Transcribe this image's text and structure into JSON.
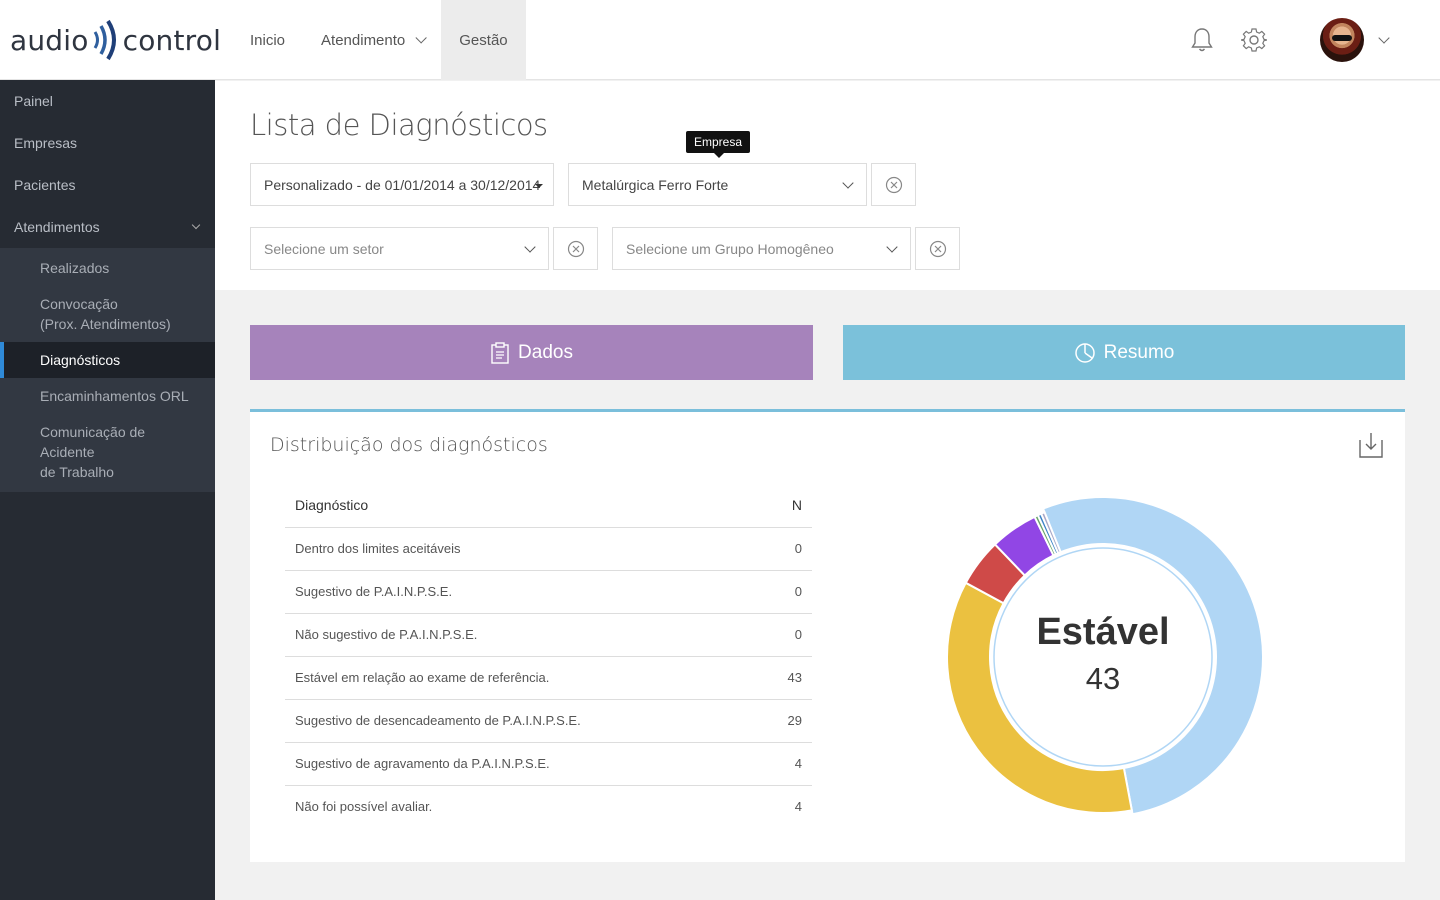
{
  "brand": {
    "left": "audio",
    "right": "control"
  },
  "nav": [
    {
      "label": "Inicio",
      "dropdown": false,
      "active": false
    },
    {
      "label": "Atendimento",
      "dropdown": true,
      "active": false
    },
    {
      "label": "Gestão",
      "dropdown": false,
      "active": true
    }
  ],
  "topbar_icons": [
    "bell-icon",
    "gear-icon",
    "avatar"
  ],
  "sidebar": {
    "items": [
      {
        "label": "Painel"
      },
      {
        "label": "Empresas"
      },
      {
        "label": "Pacientes"
      },
      {
        "label": "Atendimentos",
        "expanded": true
      }
    ],
    "submenu": [
      {
        "label": "Realizados"
      },
      {
        "label": "Convocação",
        "label2": "(Prox. Atendimentos)"
      },
      {
        "label": "Diagnósticos",
        "active": true
      },
      {
        "label": "Encaminhamentos ORL"
      },
      {
        "label": "Comunicação de Acidente",
        "label2": "de Trabalho"
      }
    ]
  },
  "page": {
    "title": "Lista de Diagnósticos",
    "filters": {
      "period": "Personalizado - de 01/01/2014 a 30/12/2014",
      "company": "Metalúrgica Ferro Forte",
      "company_tooltip": "Empresa",
      "sector_placeholder": "Selecione um setor",
      "group_placeholder": "Selecione um Grupo Homogêneo"
    },
    "tabs": [
      {
        "label": "Dados",
        "color": "#a683bb",
        "icon": "clipboard-icon"
      },
      {
        "label": "Resumo",
        "color": "#7bc1da",
        "icon": "pie-chart-icon"
      }
    ]
  },
  "panel": {
    "title": "Distribuição dos diagnósticos",
    "table": {
      "headers": [
        "Diagnóstico",
        "N"
      ],
      "rows": [
        {
          "label": "Dentro dos limites aceitáveis",
          "n": "0"
        },
        {
          "label": "Sugestivo de P.A.I.N.P.S.E.",
          "n": "0"
        },
        {
          "label": "Não sugestivo de P.A.I.N.P.S.E.",
          "n": "0"
        },
        {
          "label": "Estável em relação ao exame de referência.",
          "n": "43"
        },
        {
          "label": "Sugestivo de desencadeamento de P.A.I.N.P.S.E.",
          "n": "29"
        },
        {
          "label": "Sugestivo de agravamento da P.A.I.N.P.S.E.",
          "n": "4"
        },
        {
          "label": "Não foi possível avaliar.",
          "n": "4"
        }
      ]
    },
    "donut_center": {
      "label": "Estável",
      "value": "43"
    }
  },
  "chart_data": {
    "type": "pie",
    "donut": true,
    "categories": [
      "Estável em relação ao exame de referência.",
      "Sugestivo de desencadeamento de P.A.I.N.P.S.E.",
      "Sugestivo de agravamento da P.A.I.N.P.S.E.",
      "Não foi possível avaliar.",
      "Dentro dos limites aceitáveis",
      "Sugestivo de P.A.I.N.P.S.E.",
      "Não sugestivo de P.A.I.N.P.S.E."
    ],
    "values": [
      43,
      29,
      4,
      4,
      0.3,
      0.3,
      0.3
    ],
    "colors": [
      "#b0d6f5",
      "#ebc140",
      "#cf4a48",
      "#9146e5",
      "#6aa56a",
      "#3b84c6",
      "#a8a8c8"
    ],
    "highlighted": "Estável em relação ao exame de referência."
  }
}
